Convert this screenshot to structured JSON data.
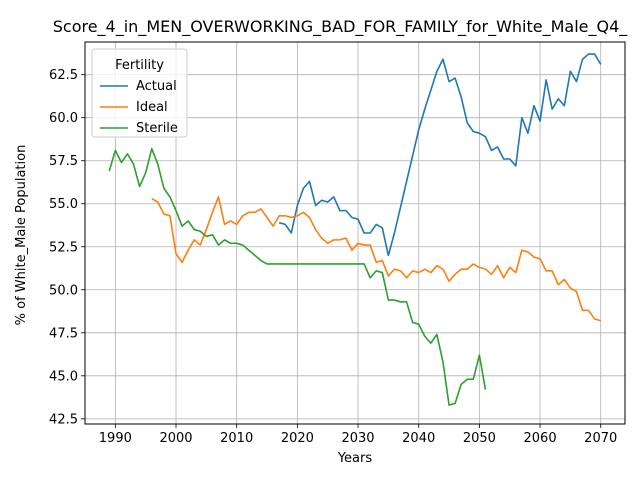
{
  "chart_data": {
    "type": "line",
    "title": "Score_4_in_MEN_OVERWORKING_BAD_FOR_FAMILY_for_White_Male_Q4_",
    "xlabel": "Years",
    "ylabel": "% of White_Male Population",
    "xlim": [
      1985,
      2074
    ],
    "ylim": [
      42.2,
      64.4
    ],
    "xticks": [
      1990,
      2000,
      2010,
      2020,
      2030,
      2040,
      2050,
      2060,
      2070
    ],
    "yticks": [
      42.5,
      45.0,
      47.5,
      50.0,
      52.5,
      55.0,
      57.5,
      60.0,
      62.5
    ],
    "grid": true,
    "legend": {
      "title": "Fertility",
      "placement": "top-left"
    },
    "series": [
      {
        "name": "Actual",
        "color": "#1f77b4",
        "points": [
          [
            2017,
            53.9
          ],
          [
            2018,
            53.8
          ],
          [
            2019,
            53.3
          ],
          [
            2020,
            54.9
          ],
          [
            2021,
            55.9
          ],
          [
            2022,
            56.3
          ],
          [
            2023,
            54.9
          ],
          [
            2024,
            55.2
          ],
          [
            2025,
            55.1
          ],
          [
            2026,
            55.4
          ],
          [
            2027,
            54.6
          ],
          [
            2028,
            54.6
          ],
          [
            2029,
            54.2
          ],
          [
            2030,
            54.1
          ],
          [
            2031,
            53.3
          ],
          [
            2032,
            53.3
          ],
          [
            2033,
            53.8
          ],
          [
            2034,
            53.6
          ],
          [
            2035,
            52.0
          ],
          [
            2036,
            53.3
          ],
          [
            2037,
            54.8
          ],
          [
            2038,
            56.3
          ],
          [
            2039,
            57.8
          ],
          [
            2040,
            59.3
          ],
          [
            2041,
            60.5
          ],
          [
            2042,
            61.6
          ],
          [
            2043,
            62.7
          ],
          [
            2044,
            63.4
          ],
          [
            2045,
            62.1
          ],
          [
            2046,
            62.3
          ],
          [
            2047,
            61.2
          ],
          [
            2048,
            59.7
          ],
          [
            2049,
            59.2
          ],
          [
            2050,
            59.1
          ],
          [
            2051,
            58.9
          ],
          [
            2052,
            58.1
          ],
          [
            2053,
            58.3
          ],
          [
            2054,
            57.6
          ],
          [
            2055,
            57.6
          ],
          [
            2056,
            57.2
          ],
          [
            2057,
            60.0
          ],
          [
            2058,
            59.1
          ],
          [
            2059,
            60.7
          ],
          [
            2060,
            59.8
          ],
          [
            2061,
            62.2
          ],
          [
            2062,
            60.5
          ],
          [
            2063,
            61.1
          ],
          [
            2064,
            60.7
          ],
          [
            2065,
            62.7
          ],
          [
            2066,
            62.1
          ],
          [
            2067,
            63.4
          ],
          [
            2068,
            63.7
          ],
          [
            2069,
            63.7
          ],
          [
            2070,
            63.1
          ]
        ]
      },
      {
        "name": "Ideal",
        "color": "#ff7f0e",
        "points": [
          [
            1996,
            55.3
          ],
          [
            1997,
            55.1
          ],
          [
            1998,
            54.4
          ],
          [
            1999,
            54.3
          ],
          [
            2000,
            52.1
          ],
          [
            2001,
            51.6
          ],
          [
            2002,
            52.3
          ],
          [
            2003,
            52.9
          ],
          [
            2004,
            52.6
          ],
          [
            2005,
            53.5
          ],
          [
            2006,
            54.5
          ],
          [
            2007,
            55.4
          ],
          [
            2008,
            53.8
          ],
          [
            2009,
            54.0
          ],
          [
            2010,
            53.8
          ],
          [
            2011,
            54.3
          ],
          [
            2012,
            54.5
          ],
          [
            2013,
            54.5
          ],
          [
            2014,
            54.7
          ],
          [
            2015,
            54.2
          ],
          [
            2016,
            53.7
          ],
          [
            2017,
            54.3
          ],
          [
            2018,
            54.3
          ],
          [
            2019,
            54.2
          ],
          [
            2020,
            54.3
          ],
          [
            2021,
            54.5
          ],
          [
            2022,
            54.2
          ],
          [
            2023,
            53.5
          ],
          [
            2024,
            53.0
          ],
          [
            2025,
            52.7
          ],
          [
            2026,
            52.9
          ],
          [
            2027,
            52.9
          ],
          [
            2028,
            53.0
          ],
          [
            2029,
            52.3
          ],
          [
            2030,
            52.7
          ],
          [
            2031,
            52.6
          ],
          [
            2032,
            52.6
          ],
          [
            2033,
            51.6
          ],
          [
            2034,
            51.7
          ],
          [
            2035,
            50.8
          ],
          [
            2036,
            51.2
          ],
          [
            2037,
            51.1
          ],
          [
            2038,
            50.7
          ],
          [
            2039,
            51.1
          ],
          [
            2040,
            51.0
          ],
          [
            2041,
            51.2
          ],
          [
            2042,
            51.0
          ],
          [
            2043,
            51.4
          ],
          [
            2044,
            51.2
          ],
          [
            2045,
            50.5
          ],
          [
            2046,
            50.9
          ],
          [
            2047,
            51.2
          ],
          [
            2048,
            51.2
          ],
          [
            2049,
            51.5
          ],
          [
            2050,
            51.3
          ],
          [
            2051,
            51.2
          ],
          [
            2052,
            50.9
          ],
          [
            2053,
            51.4
          ],
          [
            2054,
            50.7
          ],
          [
            2055,
            51.3
          ],
          [
            2056,
            51.0
          ],
          [
            2057,
            52.3
          ],
          [
            2058,
            52.2
          ],
          [
            2059,
            51.9
          ],
          [
            2060,
            51.8
          ],
          [
            2061,
            51.1
          ],
          [
            2062,
            51.1
          ],
          [
            2063,
            50.3
          ],
          [
            2064,
            50.6
          ],
          [
            2065,
            50.1
          ],
          [
            2066,
            49.9
          ],
          [
            2067,
            48.8
          ],
          [
            2068,
            48.8
          ],
          [
            2069,
            48.3
          ],
          [
            2070,
            48.2
          ]
        ]
      },
      {
        "name": "Sterile",
        "color": "#2ca02c",
        "points": [
          [
            1989,
            56.9
          ],
          [
            1990,
            58.1
          ],
          [
            1991,
            57.4
          ],
          [
            1992,
            57.9
          ],
          [
            1993,
            57.3
          ],
          [
            1994,
            56.0
          ],
          [
            1995,
            56.8
          ],
          [
            1996,
            58.2
          ],
          [
            1997,
            57.3
          ],
          [
            1998,
            55.9
          ],
          [
            1999,
            55.4
          ],
          [
            2000,
            54.6
          ],
          [
            2001,
            53.7
          ],
          [
            2002,
            54.0
          ],
          [
            2003,
            53.5
          ],
          [
            2004,
            53.4
          ],
          [
            2005,
            53.1
          ],
          [
            2006,
            53.2
          ],
          [
            2007,
            52.6
          ],
          [
            2008,
            52.9
          ],
          [
            2009,
            52.7
          ],
          [
            2010,
            52.7
          ],
          [
            2011,
            52.6
          ],
          [
            2012,
            52.3
          ],
          [
            2013,
            52.0
          ],
          [
            2014,
            51.7
          ],
          [
            2015,
            51.5
          ],
          [
            2016,
            51.5
          ],
          [
            2017,
            51.5
          ],
          [
            2018,
            51.5
          ],
          [
            2019,
            51.5
          ],
          [
            2020,
            51.5
          ],
          [
            2021,
            51.5
          ],
          [
            2022,
            51.5
          ],
          [
            2023,
            51.5
          ],
          [
            2024,
            51.5
          ],
          [
            2025,
            51.5
          ],
          [
            2026,
            51.5
          ],
          [
            2027,
            51.5
          ],
          [
            2028,
            51.5
          ],
          [
            2029,
            51.5
          ],
          [
            2030,
            51.5
          ],
          [
            2031,
            51.5
          ],
          [
            2032,
            50.7
          ],
          [
            2033,
            51.1
          ],
          [
            2034,
            51.0
          ],
          [
            2035,
            49.4
          ],
          [
            2036,
            49.4
          ],
          [
            2037,
            49.3
          ],
          [
            2038,
            49.3
          ],
          [
            2039,
            48.1
          ],
          [
            2040,
            48.0
          ],
          [
            2041,
            47.3
          ],
          [
            2042,
            46.9
          ],
          [
            2043,
            47.4
          ],
          [
            2044,
            45.8
          ],
          [
            2045,
            43.3
          ],
          [
            2046,
            43.4
          ],
          [
            2047,
            44.5
          ],
          [
            2048,
            44.8
          ],
          [
            2049,
            44.8
          ],
          [
            2050,
            46.2
          ],
          [
            2051,
            44.2
          ]
        ]
      }
    ]
  }
}
